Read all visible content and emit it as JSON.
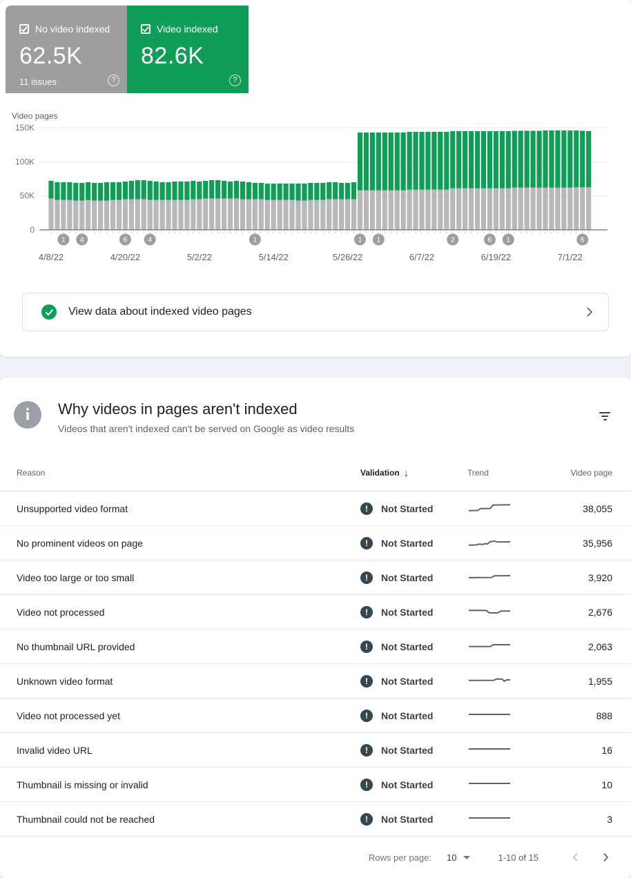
{
  "colors": {
    "card_gray": "#9e9e9e",
    "card_green": "#0f9d58",
    "bar_gray": "#b6b8ba",
    "bar_green": "#0f9d58",
    "marker_gray": "#9e9e9e",
    "error_icon": "#37474f",
    "sparkline": "#616161",
    "grid_line": "#e9eaec",
    "axis_line": "#80868b"
  },
  "cards": {
    "not_indexed": {
      "label": "No video indexed",
      "value": "62.5K",
      "issues": "11 issues",
      "checked": true
    },
    "indexed": {
      "label": "Video indexed",
      "value": "82.6K",
      "checked": true
    }
  },
  "chart_data": {
    "type": "bar",
    "stacked": true,
    "title": "Video pages",
    "ylabel": "Video pages",
    "unit": "thousands",
    "ylim_thousands": [
      0,
      150
    ],
    "yticks": [
      {
        "v": 0,
        "label": "0"
      },
      {
        "v": 50,
        "label": "50K"
      },
      {
        "v": 100,
        "label": "100K"
      },
      {
        "v": 150,
        "label": "150K"
      }
    ],
    "x_tick_days": [
      0,
      12,
      24,
      36,
      48,
      60,
      72,
      84
    ],
    "x_tick_labels": [
      "4/8/22",
      "4/20/22",
      "5/2/22",
      "5/14/22",
      "5/26/22",
      "6/7/22",
      "6/19/22",
      "7/1/22"
    ],
    "series": [
      {
        "name": "No video indexed",
        "color": "#b6b8ba",
        "values_thousands": [
          46,
          44,
          44,
          44,
          43,
          43,
          44,
          43,
          43,
          43,
          44,
          44,
          45,
          45,
          45,
          45,
          44,
          44,
          44,
          44,
          44,
          44,
          44,
          45,
          45,
          46,
          46,
          46,
          46,
          46,
          46,
          45,
          45,
          45,
          45,
          44,
          44,
          44,
          44,
          44,
          43,
          43,
          44,
          44,
          44,
          45,
          45,
          45,
          45,
          45,
          58,
          58,
          58,
          58,
          58,
          58,
          58,
          58,
          59,
          59,
          59,
          59,
          59,
          59,
          59,
          61,
          61,
          61,
          61,
          61,
          61,
          61,
          61,
          61,
          61,
          62,
          62,
          62,
          62,
          62,
          62,
          62,
          62,
          62,
          62,
          62.5,
          62.5,
          62.5
        ]
      },
      {
        "name": "Video indexed",
        "color": "#0f9d58",
        "values_thousands": [
          26,
          26,
          26,
          26,
          26,
          26,
          26,
          26,
          26,
          27,
          26,
          26,
          26,
          27,
          28,
          28,
          28,
          27,
          26,
          26,
          27,
          27,
          27,
          27,
          26,
          26,
          27,
          27,
          26,
          25,
          26,
          26,
          25,
          24,
          24,
          24,
          24,
          24,
          24,
          24,
          25,
          25,
          25,
          25,
          25,
          25,
          25,
          24,
          24,
          25,
          85,
          85,
          85,
          85,
          85,
          85,
          85,
          85,
          85,
          85,
          85,
          85,
          85,
          85,
          85,
          84,
          84,
          84,
          84,
          84,
          84,
          84,
          84,
          84,
          84,
          83.5,
          83.5,
          83.5,
          83.5,
          83.5,
          84,
          84,
          84,
          84,
          84,
          83.5,
          83,
          82.6
        ]
      }
    ],
    "issue_markers": [
      {
        "day": 2,
        "count": "1"
      },
      {
        "day": 5,
        "count": "4"
      },
      {
        "day": 12,
        "count": "6"
      },
      {
        "day": 16,
        "count": "4"
      },
      {
        "day": 33,
        "count": "1"
      },
      {
        "day": 50,
        "count": "1"
      },
      {
        "day": 53,
        "count": "1"
      },
      {
        "day": 65,
        "count": "2"
      },
      {
        "day": 71,
        "count": "6"
      },
      {
        "day": 74,
        "count": "1"
      },
      {
        "day": 86,
        "count": "6"
      }
    ]
  },
  "view_data": {
    "label": "View data about indexed video pages"
  },
  "issues_section": {
    "title": "Why videos in pages aren't indexed",
    "subtitle": "Videos that aren't indexed can't be served on Google as video results"
  },
  "table": {
    "headers": {
      "reason": "Reason",
      "validation": "Validation",
      "trend": "Trend",
      "video_page": "Video page"
    },
    "rows": [
      {
        "reason": "Unsupported video format",
        "validation": "Not Started",
        "video_page": "38,055",
        "trend": [
          [
            0,
            0.8
          ],
          [
            0.22,
            0.78
          ],
          [
            0.28,
            0.62
          ],
          [
            0.52,
            0.6
          ],
          [
            0.58,
            0.3
          ],
          [
            0.78,
            0.28
          ],
          [
            1,
            0.26
          ]
        ]
      },
      {
        "reason": "No prominent videos on page",
        "validation": "Not Started",
        "video_page": "35,956",
        "trend": [
          [
            0,
            0.8
          ],
          [
            0.18,
            0.78
          ],
          [
            0.25,
            0.7
          ],
          [
            0.33,
            0.74
          ],
          [
            0.4,
            0.66
          ],
          [
            0.45,
            0.7
          ],
          [
            0.52,
            0.48
          ],
          [
            0.62,
            0.44
          ],
          [
            0.7,
            0.52
          ],
          [
            1,
            0.5
          ]
        ]
      },
      {
        "reason": "Video too large or too small",
        "validation": "Not Started",
        "video_page": "3,920",
        "trend": [
          [
            0,
            0.62
          ],
          [
            0.55,
            0.6
          ],
          [
            0.62,
            0.45
          ],
          [
            1,
            0.44
          ]
        ]
      },
      {
        "reason": "Video not processed",
        "validation": "Not Started",
        "video_page": "2,676",
        "trend": [
          [
            0,
            0.45
          ],
          [
            0.42,
            0.46
          ],
          [
            0.5,
            0.68
          ],
          [
            0.7,
            0.68
          ],
          [
            0.78,
            0.52
          ],
          [
            1,
            0.52
          ]
        ]
      },
      {
        "reason": "No thumbnail URL provided",
        "validation": "Not Started",
        "video_page": "2,063",
        "trend": [
          [
            0,
            0.6
          ],
          [
            0.52,
            0.6
          ],
          [
            0.6,
            0.44
          ],
          [
            1,
            0.44
          ]
        ]
      },
      {
        "reason": "Unknown video format",
        "validation": "Not Started",
        "video_page": "1,955",
        "trend": [
          [
            0,
            0.55
          ],
          [
            0.6,
            0.54
          ],
          [
            0.68,
            0.42
          ],
          [
            0.8,
            0.42
          ],
          [
            0.86,
            0.62
          ],
          [
            0.92,
            0.48
          ],
          [
            1,
            0.5
          ]
        ]
      },
      {
        "reason": "Video not processed yet",
        "validation": "Not Started",
        "video_page": "888",
        "trend": [
          [
            0,
            0.5
          ],
          [
            1,
            0.5
          ]
        ]
      },
      {
        "reason": "Invalid video URL",
        "validation": "Not Started",
        "video_page": "16",
        "trend": [
          [
            0,
            0.5
          ],
          [
            1,
            0.5
          ]
        ]
      },
      {
        "reason": "Thumbnail is missing or invalid",
        "validation": "Not Started",
        "video_page": "10",
        "trend": [
          [
            0,
            0.5
          ],
          [
            1,
            0.5
          ]
        ]
      },
      {
        "reason": "Thumbnail could not be reached",
        "validation": "Not Started",
        "video_page": "3",
        "trend": [
          [
            0,
            0.5
          ],
          [
            1,
            0.5
          ]
        ]
      }
    ]
  },
  "pagination": {
    "rows_per_page_label": "Rows per page:",
    "rows_per_page": "10",
    "range": "1-10 of 15"
  }
}
